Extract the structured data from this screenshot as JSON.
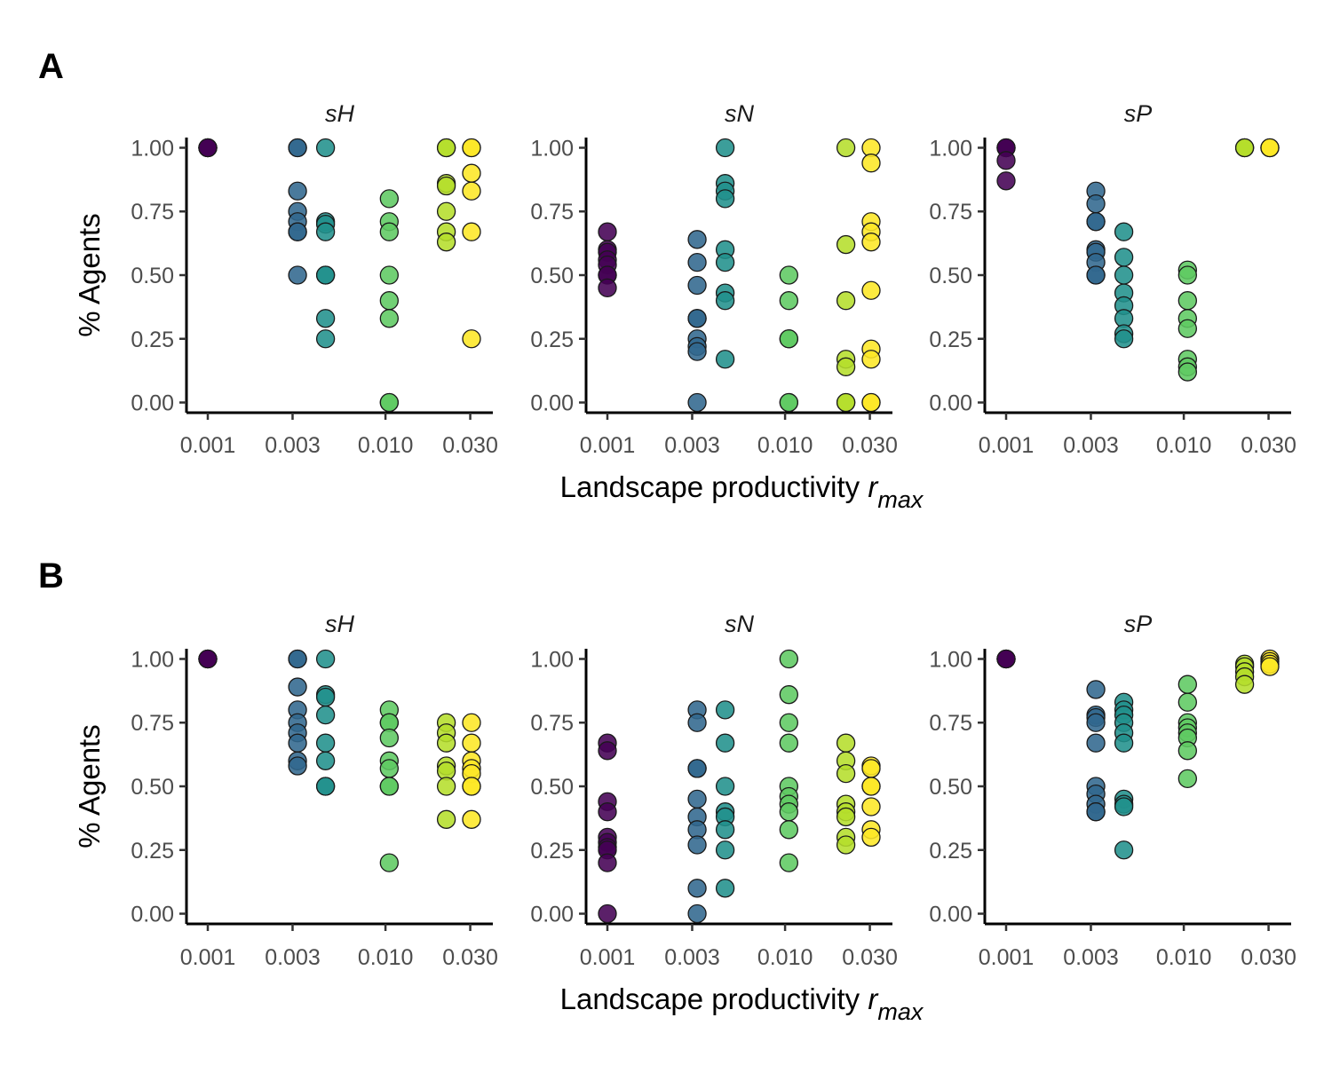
{
  "chart_data": [
    {
      "panel_label": "A",
      "type": "scatter",
      "xlabel": "Landscape productivity",
      "xlabel_symbol": "r",
      "xlabel_subscript": "max",
      "ylabel": "% Agents",
      "x_scale": "log10",
      "x_ticks": [
        0.001,
        0.003,
        0.01,
        0.03
      ],
      "x_tick_labels": [
        "0.001",
        "0.003",
        "0.010",
        "0.030"
      ],
      "y_ticks": [
        0,
        0.25,
        0.5,
        0.75,
        1.0
      ],
      "y_tick_labels": [
        "0.00",
        "0.25",
        "0.50",
        "0.75",
        "1.00"
      ],
      "ylim": [
        -0.04,
        1.04
      ],
      "x_levels": [
        0.001,
        0.0032,
        0.0046,
        0.0105,
        0.022,
        0.0305
      ],
      "level_colors": [
        "#440154",
        "#31688e",
        "#21918c",
        "#5ec962",
        "#b5de2b",
        "#fde725"
      ],
      "facets": [
        {
          "title": "sH",
          "points": [
            [
              0,
              1
            ],
            [
              0,
              1
            ],
            [
              0,
              1
            ],
            [
              0,
              1
            ],
            [
              0,
              1
            ],
            [
              1,
              1
            ],
            [
              1,
              1
            ],
            [
              1,
              0.83
            ],
            [
              1,
              0.75
            ],
            [
              1,
              0.71
            ],
            [
              1,
              0.67
            ],
            [
              1,
              0.67
            ],
            [
              1,
              0.5
            ],
            [
              2,
              1
            ],
            [
              2,
              0.71
            ],
            [
              2,
              0.7
            ],
            [
              2,
              0.67
            ],
            [
              2,
              0.5
            ],
            [
              2,
              0.5
            ],
            [
              2,
              0.33
            ],
            [
              2,
              0.25
            ],
            [
              3,
              0.8
            ],
            [
              3,
              0.71
            ],
            [
              3,
              0.67
            ],
            [
              3,
              0.5
            ],
            [
              3,
              0.4
            ],
            [
              3,
              0.33
            ],
            [
              3,
              0
            ],
            [
              3,
              0
            ],
            [
              4,
              1
            ],
            [
              4,
              1
            ],
            [
              4,
              0.86
            ],
            [
              4,
              0.85
            ],
            [
              4,
              0.75
            ],
            [
              4,
              0.67
            ],
            [
              4,
              0.63
            ],
            [
              5,
              1
            ],
            [
              5,
              1
            ],
            [
              5,
              0.9
            ],
            [
              5,
              0.83
            ],
            [
              5,
              0.67
            ],
            [
              5,
              0.25
            ]
          ]
        },
        {
          "title": "sN",
          "points": [
            [
              0,
              0.67
            ],
            [
              0,
              0.6
            ],
            [
              0,
              0.59
            ],
            [
              0,
              0.56
            ],
            [
              0,
              0.54
            ],
            [
              0,
              0.5
            ],
            [
              0,
              0.5
            ],
            [
              0,
              0.45
            ],
            [
              1,
              0.64
            ],
            [
              1,
              0.55
            ],
            [
              1,
              0.46
            ],
            [
              1,
              0.33
            ],
            [
              1,
              0.33
            ],
            [
              1,
              0.25
            ],
            [
              1,
              0.22
            ],
            [
              1,
              0.2
            ],
            [
              1,
              0
            ],
            [
              2,
              1
            ],
            [
              2,
              0.86
            ],
            [
              2,
              0.83
            ],
            [
              2,
              0.8
            ],
            [
              2,
              0.6
            ],
            [
              2,
              0.55
            ],
            [
              2,
              0.43
            ],
            [
              2,
              0.4
            ],
            [
              2,
              0.17
            ],
            [
              3,
              0.5
            ],
            [
              3,
              0.4
            ],
            [
              3,
              0.25
            ],
            [
              3,
              0.25
            ],
            [
              3,
              0
            ],
            [
              3,
              0
            ],
            [
              4,
              1
            ],
            [
              4,
              0.62
            ],
            [
              4,
              0.4
            ],
            [
              4,
              0.17
            ],
            [
              4,
              0.14
            ],
            [
              4,
              0
            ],
            [
              4,
              0
            ],
            [
              5,
              1
            ],
            [
              5,
              0.94
            ],
            [
              5,
              0.71
            ],
            [
              5,
              0.67
            ],
            [
              5,
              0.63
            ],
            [
              5,
              0.44
            ],
            [
              5,
              0.21
            ],
            [
              5,
              0.17
            ],
            [
              5,
              0
            ],
            [
              5,
              0
            ]
          ]
        },
        {
          "title": "sP",
          "points": [
            [
              0,
              1
            ],
            [
              0,
              1
            ],
            [
              0,
              1
            ],
            [
              0,
              0.95
            ],
            [
              0,
              0.87
            ],
            [
              1,
              0.83
            ],
            [
              1,
              0.78
            ],
            [
              1,
              0.71
            ],
            [
              1,
              0.71
            ],
            [
              1,
              0.6
            ],
            [
              1,
              0.59
            ],
            [
              1,
              0.55
            ],
            [
              1,
              0.5
            ],
            [
              1,
              0.5
            ],
            [
              2,
              0.67
            ],
            [
              2,
              0.57
            ],
            [
              2,
              0.5
            ],
            [
              2,
              0.43
            ],
            [
              2,
              0.38
            ],
            [
              2,
              0.33
            ],
            [
              2,
              0.27
            ],
            [
              2,
              0.25
            ],
            [
              3,
              0.52
            ],
            [
              3,
              0.5
            ],
            [
              3,
              0.4
            ],
            [
              3,
              0.33
            ],
            [
              3,
              0.29
            ],
            [
              3,
              0.17
            ],
            [
              3,
              0.14
            ],
            [
              3,
              0.12
            ],
            [
              4,
              1
            ],
            [
              4,
              1
            ],
            [
              4,
              1
            ],
            [
              5,
              1
            ],
            [
              5,
              1
            ],
            [
              5,
              1
            ]
          ]
        }
      ]
    },
    {
      "panel_label": "B",
      "type": "scatter",
      "xlabel": "Landscape productivity",
      "xlabel_symbol": "r",
      "xlabel_subscript": "max",
      "ylabel": "% Agents",
      "x_scale": "log10",
      "x_ticks": [
        0.001,
        0.003,
        0.01,
        0.03
      ],
      "x_tick_labels": [
        "0.001",
        "0.003",
        "0.010",
        "0.030"
      ],
      "y_ticks": [
        0,
        0.25,
        0.5,
        0.75,
        1.0
      ],
      "y_tick_labels": [
        "0.00",
        "0.25",
        "0.50",
        "0.75",
        "1.00"
      ],
      "ylim": [
        -0.04,
        1.04
      ],
      "x_levels": [
        0.001,
        0.0032,
        0.0046,
        0.0105,
        0.022,
        0.0305
      ],
      "level_colors": [
        "#440154",
        "#31688e",
        "#21918c",
        "#5ec962",
        "#b5de2b",
        "#fde725"
      ],
      "facets": [
        {
          "title": "sH",
          "points": [
            [
              0,
              1
            ],
            [
              0,
              1
            ],
            [
              0,
              1
            ],
            [
              0,
              1
            ],
            [
              1,
              1
            ],
            [
              1,
              1
            ],
            [
              1,
              0.89
            ],
            [
              1,
              0.8
            ],
            [
              1,
              0.75
            ],
            [
              1,
              0.71
            ],
            [
              1,
              0.67
            ],
            [
              1,
              0.6
            ],
            [
              1,
              0.58
            ],
            [
              2,
              1
            ],
            [
              2,
              0.86
            ],
            [
              2,
              0.85
            ],
            [
              2,
              0.78
            ],
            [
              2,
              0.67
            ],
            [
              2,
              0.6
            ],
            [
              2,
              0.5
            ],
            [
              2,
              0.5
            ],
            [
              3,
              0.8
            ],
            [
              3,
              0.75
            ],
            [
              3,
              0.75
            ],
            [
              3,
              0.69
            ],
            [
              3,
              0.6
            ],
            [
              3,
              0.57
            ],
            [
              3,
              0.5
            ],
            [
              3,
              0.5
            ],
            [
              3,
              0.2
            ],
            [
              4,
              0.75
            ],
            [
              4,
              0.71
            ],
            [
              4,
              0.67
            ],
            [
              4,
              0.58
            ],
            [
              4,
              0.56
            ],
            [
              4,
              0.5
            ],
            [
              4,
              0.37
            ],
            [
              5,
              0.75
            ],
            [
              5,
              0.67
            ],
            [
              5,
              0.6
            ],
            [
              5,
              0.57
            ],
            [
              5,
              0.55
            ],
            [
              5,
              0.5
            ],
            [
              5,
              0.5
            ],
            [
              5,
              0.37
            ]
          ]
        },
        {
          "title": "sN",
          "points": [
            [
              0,
              0.67
            ],
            [
              0,
              0.64
            ],
            [
              0,
              0.44
            ],
            [
              0,
              0.4
            ],
            [
              0,
              0.3
            ],
            [
              0,
              0.28
            ],
            [
              0,
              0.26
            ],
            [
              0,
              0.25
            ],
            [
              0,
              0.2
            ],
            [
              0,
              0
            ],
            [
              1,
              0.8
            ],
            [
              1,
              0.75
            ],
            [
              1,
              0.57
            ],
            [
              1,
              0.57
            ],
            [
              1,
              0.45
            ],
            [
              1,
              0.38
            ],
            [
              1,
              0.33
            ],
            [
              1,
              0.27
            ],
            [
              1,
              0.1
            ],
            [
              1,
              0
            ],
            [
              2,
              0.8
            ],
            [
              2,
              0.67
            ],
            [
              2,
              0.5
            ],
            [
              2,
              0.4
            ],
            [
              2,
              0.38
            ],
            [
              2,
              0.33
            ],
            [
              2,
              0.25
            ],
            [
              2,
              0.1
            ],
            [
              3,
              1
            ],
            [
              3,
              0.86
            ],
            [
              3,
              0.75
            ],
            [
              3,
              0.67
            ],
            [
              3,
              0.5
            ],
            [
              3,
              0.46
            ],
            [
              3,
              0.43
            ],
            [
              3,
              0.4
            ],
            [
              3,
              0.33
            ],
            [
              3,
              0.2
            ],
            [
              4,
              0.67
            ],
            [
              4,
              0.6
            ],
            [
              4,
              0.55
            ],
            [
              4,
              0.43
            ],
            [
              4,
              0.4
            ],
            [
              4,
              0.38
            ],
            [
              4,
              0.3
            ],
            [
              4,
              0.27
            ],
            [
              5,
              0.58
            ],
            [
              5,
              0.57
            ],
            [
              5,
              0.5
            ],
            [
              5,
              0.5
            ],
            [
              5,
              0.42
            ],
            [
              5,
              0.33
            ],
            [
              5,
              0.3
            ]
          ]
        },
        {
          "title": "sP",
          "points": [
            [
              0,
              1
            ],
            [
              0,
              1
            ],
            [
              0,
              1
            ],
            [
              0,
              1
            ],
            [
              1,
              0.88
            ],
            [
              1,
              0.78
            ],
            [
              1,
              0.77
            ],
            [
              1,
              0.75
            ],
            [
              1,
              0.67
            ],
            [
              1,
              0.5
            ],
            [
              1,
              0.47
            ],
            [
              1,
              0.43
            ],
            [
              1,
              0.4
            ],
            [
              1,
              0.4
            ],
            [
              2,
              0.83
            ],
            [
              2,
              0.8
            ],
            [
              2,
              0.78
            ],
            [
              2,
              0.75
            ],
            [
              2,
              0.71
            ],
            [
              2,
              0.67
            ],
            [
              2,
              0.45
            ],
            [
              2,
              0.43
            ],
            [
              2,
              0.42
            ],
            [
              2,
              0.25
            ],
            [
              3,
              0.9
            ],
            [
              3,
              0.83
            ],
            [
              3,
              0.75
            ],
            [
              3,
              0.73
            ],
            [
              3,
              0.71
            ],
            [
              3,
              0.69
            ],
            [
              3,
              0.64
            ],
            [
              3,
              0.53
            ],
            [
              4,
              0.98
            ],
            [
              4,
              0.97
            ],
            [
              4,
              0.95
            ],
            [
              4,
              0.93
            ],
            [
              4,
              0.9
            ],
            [
              5,
              1
            ],
            [
              5,
              0.99
            ],
            [
              5,
              0.98
            ],
            [
              5,
              0.97
            ]
          ]
        }
      ]
    }
  ]
}
